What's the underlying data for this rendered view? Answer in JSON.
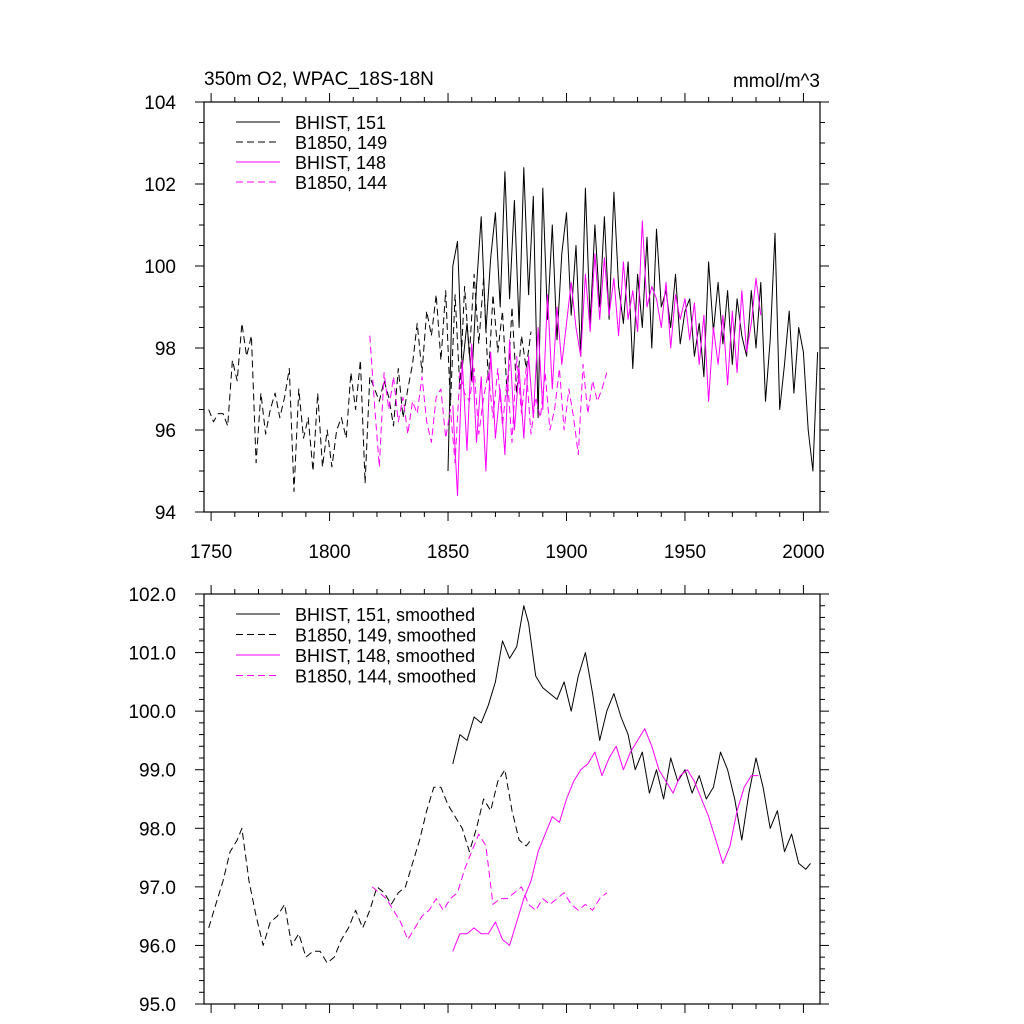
{
  "chart_data": [
    {
      "type": "line",
      "title": "350m O2, WPAC_18S-18N",
      "units": "mmol/m^3",
      "xlim": [
        1747,
        2007
      ],
      "ylim": [
        94,
        104
      ],
      "xticks": [
        1750,
        1800,
        1850,
        1900,
        1950,
        2000
      ],
      "yticks": [
        94,
        96,
        98,
        100,
        102,
        104
      ],
      "series": [
        {
          "name": "BHIST, 151",
          "color": "#000000",
          "dash": "solid",
          "x": [
            1850,
            1852,
            1854,
            1856,
            1858,
            1860,
            1862,
            1864,
            1866,
            1868,
            1870,
            1872,
            1874,
            1876,
            1878,
            1880,
            1882,
            1884,
            1886,
            1888,
            1890,
            1892,
            1894,
            1896,
            1898,
            1900,
            1902,
            1904,
            1906,
            1908,
            1910,
            1912,
            1914,
            1916,
            1918,
            1920,
            1922,
            1924,
            1926,
            1928,
            1930,
            1932,
            1934,
            1936,
            1938,
            1940,
            1942,
            1944,
            1946,
            1948,
            1950,
            1952,
            1954,
            1956,
            1958,
            1960,
            1962,
            1964,
            1966,
            1968,
            1970,
            1972,
            1974,
            1976,
            1978,
            1980,
            1982,
            1984,
            1986,
            1988,
            1990,
            1992,
            1994,
            1996,
            1998,
            2000,
            2002,
            2004,
            2006
          ],
          "values": [
            95.0,
            100.0,
            100.6,
            97.5,
            98.6,
            97.2,
            99.5,
            101.2,
            98.4,
            100.2,
            101.3,
            99.0,
            102.3,
            99.2,
            101.6,
            98.5,
            102.4,
            99.3,
            101.7,
            96.3,
            101.9,
            98.7,
            101.0,
            98.2,
            100.3,
            101.3,
            98.8,
            100.5,
            97.8,
            101.9,
            98.6,
            101.0,
            99.0,
            101.2,
            98.7,
            101.8,
            99.5,
            98.6,
            100.1,
            97.5,
            99.8,
            98.5,
            100.7,
            98.0,
            100.9,
            99.0,
            99.4,
            98.5,
            99.8,
            98.1,
            98.9,
            99.2,
            97.8,
            98.6,
            97.3,
            100.1,
            98.4,
            99.6,
            98.1,
            99.4,
            97.6,
            99.2,
            98.3,
            97.8,
            99.4,
            98.0,
            99.6,
            96.7,
            98.2,
            100.8,
            96.5,
            97.6,
            98.9,
            96.9,
            98.5,
            97.9,
            96.0,
            95.0,
            97.9
          ]
        },
        {
          "name": "B1850, 149",
          "color": "#000000",
          "dash": "dashed",
          "x": [
            1749,
            1751,
            1753,
            1755,
            1757,
            1759,
            1761,
            1763,
            1765,
            1767,
            1769,
            1771,
            1773,
            1775,
            1777,
            1779,
            1781,
            1783,
            1785,
            1787,
            1789,
            1791,
            1793,
            1795,
            1797,
            1799,
            1801,
            1803,
            1805,
            1807,
            1809,
            1811,
            1813,
            1815,
            1817,
            1819,
            1821,
            1823,
            1825,
            1827,
            1829,
            1831,
            1833,
            1835,
            1837,
            1839,
            1841,
            1843,
            1845,
            1847,
            1849,
            1851,
            1853,
            1855,
            1857,
            1859,
            1861,
            1863,
            1865,
            1867,
            1869,
            1871,
            1873,
            1875,
            1877,
            1879,
            1881,
            1883,
            1885
          ],
          "values": [
            96.5,
            96.2,
            96.4,
            96.4,
            96.1,
            97.7,
            97.2,
            98.6,
            97.8,
            98.3,
            95.2,
            96.9,
            95.9,
            96.5,
            96.9,
            96.3,
            96.8,
            97.5,
            94.5,
            97.0,
            95.8,
            96.3,
            95.0,
            96.9,
            95.1,
            96.0,
            95.1,
            96.0,
            96.3,
            95.8,
            97.4,
            96.5,
            97.7,
            94.7,
            97.3,
            97.0,
            96.7,
            97.2,
            96.8,
            96.1,
            97.5,
            96.3,
            97.0,
            97.6,
            98.6,
            97.4,
            98.9,
            98.3,
            99.3,
            97.7,
            99.4,
            96.6,
            99.3,
            97.0,
            99.5,
            97.8,
            99.8,
            98.1,
            99.7,
            97.2,
            99.3,
            97.9,
            98.9,
            96.8,
            99.0,
            96.9,
            98.3,
            97.5,
            98.4
          ]
        },
        {
          "name": "BHIST, 148",
          "color": "#ff00ff",
          "dash": "solid",
          "x": [
            1852,
            1854,
            1856,
            1858,
            1860,
            1862,
            1864,
            1866,
            1868,
            1870,
            1872,
            1874,
            1876,
            1878,
            1880,
            1882,
            1884,
            1886,
            1888,
            1890,
            1892,
            1894,
            1896,
            1898,
            1900,
            1902,
            1904,
            1906,
            1908,
            1910,
            1912,
            1914,
            1916,
            1918,
            1920,
            1922,
            1924,
            1926,
            1928,
            1930,
            1932,
            1934,
            1936,
            1938,
            1940,
            1942,
            1944,
            1946,
            1948,
            1950,
            1952,
            1954,
            1956,
            1958,
            1960,
            1962,
            1964,
            1966,
            1968,
            1970,
            1972,
            1974,
            1976,
            1978,
            1980,
            1982
          ],
          "values": [
            96.6,
            94.4,
            97.7,
            95.5,
            98.1,
            95.7,
            97.3,
            95.0,
            97.9,
            95.8,
            97.0,
            95.4,
            98.2,
            96.0,
            97.5,
            95.8,
            97.8,
            96.3,
            98.5,
            96.5,
            99.3,
            97.0,
            99.0,
            97.6,
            98.6,
            99.6,
            98.5,
            97.8,
            99.8,
            98.4,
            100.3,
            98.7,
            100.2,
            98.8,
            99.7,
            98.3,
            100.1,
            98.7,
            99.4,
            98.4,
            101.1,
            99.0,
            99.5,
            99.2,
            98.5,
            99.6,
            98.0,
            99.3,
            98.7,
            99.2,
            98.2,
            99.1,
            97.6,
            98.8,
            96.7,
            98.5,
            97.6,
            98.8,
            97.1,
            98.9,
            97.4,
            99.4,
            97.9,
            98.6,
            99.7,
            98.8
          ]
        },
        {
          "name": "B1850, 144",
          "color": "#ff00ff",
          "dash": "dashed",
          "x": [
            1817,
            1819,
            1821,
            1823,
            1825,
            1827,
            1829,
            1831,
            1833,
            1835,
            1837,
            1839,
            1841,
            1843,
            1845,
            1847,
            1849,
            1851,
            1853,
            1855,
            1857,
            1859,
            1861,
            1863,
            1865,
            1867,
            1869,
            1871,
            1873,
            1875,
            1877,
            1879,
            1881,
            1883,
            1885,
            1887,
            1889,
            1891,
            1893,
            1895,
            1897,
            1899,
            1901,
            1903,
            1905,
            1907,
            1909,
            1911,
            1913,
            1915,
            1917
          ],
          "values": [
            98.3,
            96.6,
            95.1,
            97.4,
            96.5,
            97.3,
            96.2,
            96.8,
            95.9,
            96.7,
            96.4,
            97.3,
            96.2,
            95.7,
            96.8,
            97.0,
            95.8,
            96.5,
            95.2,
            97.4,
            96.9,
            96.7,
            97.5,
            95.9,
            96.8,
            97.4,
            96.3,
            97.5,
            96.1,
            97.3,
            95.7,
            97.8,
            96.4,
            97.5,
            95.9,
            96.8,
            96.3,
            97.4,
            96.0,
            96.5,
            97.5,
            96.0,
            97.0,
            96.3,
            95.4,
            97.6,
            96.4,
            97.2,
            96.7,
            97.0,
            97.4
          ]
        }
      ]
    },
    {
      "type": "line",
      "xlim": [
        1747,
        2007
      ],
      "ylim": [
        95.0,
        102.0
      ],
      "xticks": [
        1750,
        1800,
        1850,
        1900,
        1950,
        2000
      ],
      "yticks": [
        "95.0",
        "96.0",
        "97.0",
        "98.0",
        "99.0",
        "100.0",
        "101.0",
        "102.0"
      ],
      "series": [
        {
          "name": "BHIST, 151, smoothed",
          "color": "#000000",
          "dash": "solid",
          "x": [
            1852,
            1855,
            1858,
            1861,
            1864,
            1867,
            1870,
            1873,
            1876,
            1879,
            1882,
            1884,
            1887,
            1890,
            1893,
            1896,
            1899,
            1902,
            1905,
            1908,
            1911,
            1914,
            1917,
            1920,
            1923,
            1926,
            1929,
            1932,
            1935,
            1938,
            1941,
            1944,
            1947,
            1950,
            1953,
            1956,
            1959,
            1962,
            1965,
            1968,
            1971,
            1974,
            1977,
            1980,
            1983,
            1986,
            1989,
            1992,
            1995,
            1998,
            2001,
            2003
          ],
          "values": [
            99.1,
            99.6,
            99.5,
            99.9,
            99.8,
            100.1,
            100.5,
            101.2,
            100.9,
            101.1,
            101.8,
            101.5,
            100.6,
            100.4,
            100.3,
            100.2,
            100.5,
            100.0,
            100.6,
            101.0,
            100.3,
            99.5,
            100.0,
            100.3,
            99.9,
            99.6,
            99.0,
            99.3,
            98.6,
            99.0,
            98.5,
            99.2,
            98.8,
            99.0,
            98.6,
            98.9,
            98.5,
            98.7,
            99.3,
            99.0,
            98.5,
            97.8,
            98.6,
            99.2,
            98.7,
            98.0,
            98.3,
            97.6,
            97.9,
            97.4,
            97.3,
            97.4
          ]
        },
        {
          "name": "B1850, 149, smoothed",
          "color": "#000000",
          "dash": "dashed",
          "x": [
            1749,
            1752,
            1755,
            1758,
            1761,
            1763,
            1766,
            1769,
            1772,
            1775,
            1778,
            1781,
            1784,
            1787,
            1790,
            1793,
            1796,
            1799,
            1802,
            1805,
            1808,
            1811,
            1814,
            1817,
            1820,
            1823,
            1826,
            1829,
            1832,
            1835,
            1838,
            1841,
            1844,
            1847,
            1850,
            1853,
            1856,
            1859,
            1862,
            1865,
            1868,
            1871,
            1874,
            1877,
            1880,
            1883,
            1885
          ],
          "values": [
            96.3,
            96.7,
            97.1,
            97.6,
            97.8,
            98.0,
            97.1,
            96.5,
            96.0,
            96.4,
            96.5,
            96.7,
            96.0,
            96.2,
            95.8,
            95.9,
            95.9,
            95.7,
            95.8,
            96.1,
            96.3,
            96.6,
            96.3,
            96.6,
            97.0,
            96.9,
            96.7,
            96.9,
            97.0,
            97.4,
            97.8,
            98.3,
            98.7,
            98.7,
            98.4,
            98.2,
            98.0,
            97.6,
            98.0,
            98.5,
            98.3,
            98.8,
            99.0,
            98.3,
            97.8,
            97.7,
            97.8
          ]
        },
        {
          "name": "BHIST, 148, smoothed",
          "color": "#ff00ff",
          "dash": "solid",
          "x": [
            1852,
            1855,
            1858,
            1861,
            1864,
            1867,
            1870,
            1873,
            1876,
            1879,
            1882,
            1885,
            1888,
            1891,
            1894,
            1897,
            1900,
            1903,
            1906,
            1909,
            1912,
            1915,
            1918,
            1921,
            1924,
            1927,
            1930,
            1933,
            1936,
            1939,
            1942,
            1945,
            1948,
            1951,
            1954,
            1957,
            1960,
            1963,
            1966,
            1969,
            1972,
            1975,
            1978,
            1981
          ],
          "values": [
            95.9,
            96.2,
            96.2,
            96.3,
            96.2,
            96.2,
            96.4,
            96.1,
            96.0,
            96.4,
            96.8,
            97.1,
            97.6,
            97.9,
            98.2,
            98.1,
            98.5,
            98.8,
            99.0,
            99.1,
            99.3,
            98.9,
            99.2,
            99.4,
            99.0,
            99.3,
            99.5,
            99.7,
            99.4,
            99.0,
            98.8,
            98.6,
            98.9,
            99.0,
            98.8,
            98.5,
            98.2,
            97.8,
            97.4,
            97.7,
            98.3,
            98.7,
            98.9,
            98.9
          ]
        },
        {
          "name": "B1850, 144, smoothed",
          "color": "#ff00ff",
          "dash": "dashed",
          "x": [
            1818,
            1821,
            1824,
            1827,
            1830,
            1833,
            1836,
            1839,
            1842,
            1845,
            1848,
            1851,
            1854,
            1857,
            1860,
            1863,
            1866,
            1869,
            1872,
            1875,
            1878,
            1881,
            1884,
            1887,
            1890,
            1893,
            1896,
            1899,
            1902,
            1905,
            1908,
            1911,
            1914,
            1917
          ],
          "values": [
            97.0,
            96.9,
            96.8,
            96.6,
            96.4,
            96.1,
            96.3,
            96.5,
            96.6,
            96.8,
            96.6,
            96.8,
            96.9,
            97.3,
            97.6,
            97.9,
            97.7,
            96.7,
            96.8,
            96.8,
            96.9,
            97.0,
            96.7,
            96.6,
            96.8,
            96.7,
            96.8,
            96.9,
            96.7,
            96.6,
            96.7,
            96.6,
            96.8,
            96.9
          ]
        }
      ]
    }
  ]
}
